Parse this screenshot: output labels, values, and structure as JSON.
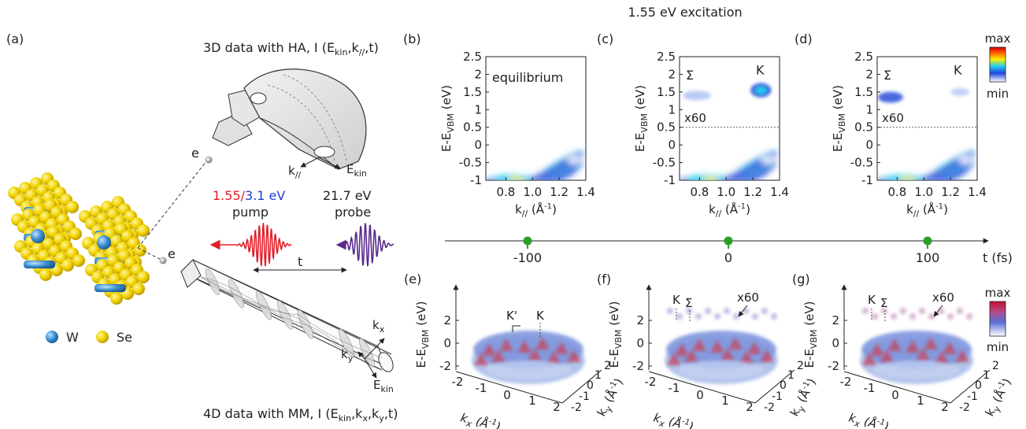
{
  "excitation_title": "1.55 eV excitation",
  "panel_labels": {
    "a": "(a)",
    "b": "(b)",
    "c": "(c)",
    "d": "(d)",
    "e": "(e)",
    "f": "(f)",
    "g": "(g)"
  },
  "schematic": {
    "ha_title": "3D data with HA, I (E",
    "ha_title_sub": "kin",
    "ha_title_rest": ",k",
    "ha_title_sub2": "//",
    "ha_title_end": ",t)",
    "mm_title": "4D data with MM, I (E",
    "mm_title_sub": "kin",
    "mm_title_rest": ",k",
    "mm_title_sub2": "x",
    "mm_title_rest2": ",k",
    "mm_title_sub3": "y",
    "mm_title_end": ",t)",
    "pump_energy_a": "1.55/",
    "pump_energy_b": "3.1 eV",
    "pump_label": "pump",
    "probe_energy": "21.7 eV",
    "probe_label": "probe",
    "delay_label": "t",
    "electron_label": "e",
    "k_par": "k",
    "k_par_sub": "//",
    "e_kin": "E",
    "e_kin_sub": "kin",
    "kx": "k",
    "kx_sub": "x",
    "ky": "k",
    "ky_sub": "y",
    "legend_w": "W",
    "legend_se": "Se",
    "colors": {
      "pump": "#e0202a",
      "pump_blue": "#1f3ad6",
      "probe": "#5a2a8c",
      "w_atom": "#3b8fd0",
      "se_atom": "#f0d000"
    }
  },
  "arpes": {
    "ylabel": "E-E",
    "ylabel_sub": "VBM",
    "ylabel_unit": " (eV)",
    "xlabel": "k",
    "xlabel_sub": "//",
    "xlabel_unit": " (Å",
    "xlabel_exp": "-1",
    "xlabel_close": ")",
    "yticks": [
      "2.5",
      "2",
      "1.5",
      "1",
      "0.5",
      "0",
      "-0.5",
      "-1"
    ],
    "xticks": [
      "0.8",
      "1.0",
      "1.2",
      "1.4"
    ],
    "b_label": "equilibrium",
    "sigma": "Σ",
    "K": "K",
    "scale": "x60",
    "cbar_max": "max",
    "cbar_min": "min"
  },
  "timeline": {
    "ticks": [
      "-100",
      "0",
      "100"
    ],
    "label": "t (fs)",
    "marker_color": "#2aa02a"
  },
  "mm3d": {
    "ylabel": "E-E",
    "ylabel_sub": "VBM",
    "ylabel_unit": " (eV)",
    "zticks": [
      "2",
      "0",
      "-2"
    ],
    "kx_label": "k",
    "kx_sub": "x",
    "kx_unit": " (Å",
    "kx_exp": "-1",
    "kx_close": ")",
    "ky_label": "k",
    "ky_sub": "y",
    "ky_unit": " (Å",
    "ky_exp": "-1",
    "ky_close": ")",
    "kx_ticks": [
      "-2",
      "-1",
      "0",
      "1",
      "2"
    ],
    "ky_ticks": [
      "-2",
      "-1",
      "0",
      "1",
      "2"
    ],
    "e_Kp": "K'",
    "e_K": "K",
    "f_K": "K",
    "f_sigma": "Σ",
    "f_scale": "x60",
    "g_K": "K",
    "g_sigma": "Σ",
    "g_scale": "x60",
    "cbar_max": "max",
    "cbar_min": "min"
  }
}
